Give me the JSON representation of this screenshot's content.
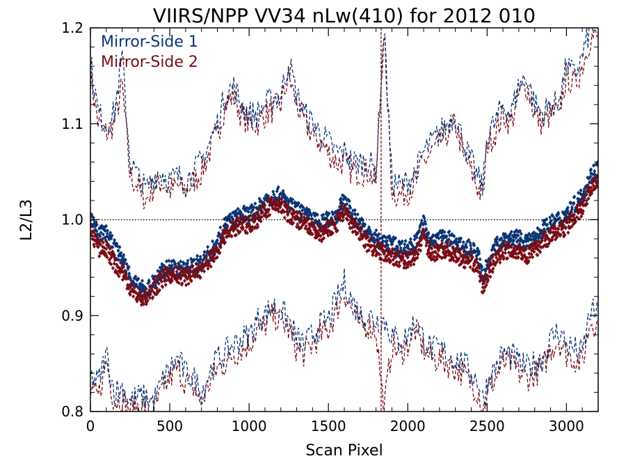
{
  "chart_data": {
    "type": "scatter",
    "title": "VIIRS/NPP VV34 nLw(410) for 2012 010",
    "xlabel": "Scan Pixel",
    "ylabel": "L2/L3",
    "xlim": [
      0,
      3200
    ],
    "ylim": [
      0.8,
      1.2
    ],
    "xticks": [
      0,
      500,
      1000,
      1500,
      2000,
      2500,
      3000
    ],
    "xtick_labels": [
      "0",
      "500",
      "1000",
      "1500",
      "2000",
      "2500",
      "3000"
    ],
    "yticks": [
      0.8,
      0.9,
      1.0,
      1.1,
      1.2
    ],
    "ytick_labels": [
      "0.8",
      "0.9",
      "1.0",
      "1.1",
      "1.2"
    ],
    "reference_line": 1.0,
    "legend": {
      "placement": "top-left"
    },
    "series": [
      {
        "name": "Mirror-Side 1",
        "color": "#0a3575",
        "marker": "diamond",
        "line_style": "dashed",
        "x": [
          0,
          50,
          100,
          150,
          200,
          250,
          300,
          350,
          400,
          450,
          500,
          550,
          600,
          650,
          700,
          750,
          800,
          850,
          900,
          950,
          1000,
          1050,
          1100,
          1150,
          1200,
          1250,
          1300,
          1350,
          1400,
          1450,
          1500,
          1550,
          1600,
          1650,
          1700,
          1750,
          1800,
          1850,
          1900,
          1950,
          2000,
          2050,
          2100,
          2150,
          2200,
          2250,
          2300,
          2350,
          2400,
          2450,
          2475,
          2500,
          2550,
          2600,
          2650,
          2700,
          2750,
          2800,
          2850,
          2900,
          2950,
          3000,
          3050,
          3100,
          3150,
          3200
        ],
        "mean": [
          1.005,
          0.985,
          0.985,
          0.97,
          0.96,
          0.94,
          0.93,
          0.925,
          0.935,
          0.945,
          0.95,
          0.948,
          0.948,
          0.952,
          0.955,
          0.965,
          0.975,
          0.995,
          1.0,
          1.005,
          1.005,
          1.01,
          1.02,
          1.025,
          1.025,
          1.015,
          1.01,
          1.005,
          1.0,
          0.995,
          1.0,
          1.005,
          1.02,
          1.005,
          0.995,
          0.985,
          0.98,
          0.975,
          0.975,
          0.97,
          0.97,
          0.975,
          0.995,
          0.975,
          0.98,
          0.98,
          0.975,
          0.97,
          0.97,
          0.96,
          0.935,
          0.955,
          0.97,
          0.98,
          0.98,
          0.98,
          0.975,
          0.98,
          0.99,
          0.995,
          1.0,
          1.005,
          1.015,
          1.025,
          1.045,
          1.055
        ],
        "upper": [
          1.165,
          1.11,
          1.1,
          1.11,
          1.17,
          1.06,
          1.045,
          1.03,
          1.045,
          1.05,
          1.04,
          1.045,
          1.04,
          1.05,
          1.06,
          1.08,
          1.1,
          1.13,
          1.14,
          1.12,
          1.11,
          1.11,
          1.12,
          1.125,
          1.13,
          1.165,
          1.13,
          1.11,
          1.1,
          1.09,
          1.08,
          1.07,
          1.07,
          1.06,
          1.06,
          1.06,
          1.05,
          1.2,
          1.04,
          1.035,
          1.04,
          1.05,
          1.07,
          1.08,
          1.09,
          1.1,
          1.11,
          1.08,
          1.06,
          1.04,
          1.035,
          1.09,
          1.1,
          1.12,
          1.11,
          1.14,
          1.15,
          1.12,
          1.11,
          1.12,
          1.12,
          1.16,
          1.15,
          1.17,
          1.2,
          1.2
        ],
        "lower": [
          0.835,
          0.83,
          0.86,
          0.82,
          0.825,
          0.81,
          0.815,
          0.815,
          0.81,
          0.83,
          0.845,
          0.855,
          0.84,
          0.835,
          0.82,
          0.84,
          0.855,
          0.86,
          0.87,
          0.875,
          0.88,
          0.895,
          0.9,
          0.91,
          0.905,
          0.895,
          0.875,
          0.87,
          0.88,
          0.89,
          0.895,
          0.915,
          0.935,
          0.915,
          0.9,
          0.9,
          0.895,
          0.895,
          0.88,
          0.87,
          0.88,
          0.895,
          0.875,
          0.865,
          0.865,
          0.86,
          0.855,
          0.85,
          0.84,
          0.83,
          0.81,
          0.83,
          0.845,
          0.86,
          0.86,
          0.85,
          0.845,
          0.85,
          0.855,
          0.875,
          0.885,
          0.87,
          0.865,
          0.86,
          0.905,
          0.9
        ]
      },
      {
        "name": "Mirror-Side 2",
        "color": "#7a0c16",
        "marker": "diamond",
        "line_style": "dashed",
        "x": [
          0,
          50,
          100,
          150,
          200,
          250,
          300,
          350,
          400,
          450,
          500,
          550,
          600,
          650,
          700,
          750,
          800,
          850,
          900,
          950,
          1000,
          1050,
          1100,
          1150,
          1200,
          1250,
          1300,
          1350,
          1400,
          1450,
          1500,
          1550,
          1600,
          1650,
          1700,
          1750,
          1800,
          1850,
          1900,
          1950,
          2000,
          2050,
          2100,
          2150,
          2200,
          2250,
          2300,
          2350,
          2400,
          2450,
          2475,
          2500,
          2550,
          2600,
          2650,
          2700,
          2750,
          2800,
          2850,
          2900,
          2950,
          3000,
          3050,
          3100,
          3150,
          3200
        ],
        "mean": [
          0.99,
          0.97,
          0.97,
          0.955,
          0.945,
          0.93,
          0.92,
          0.918,
          0.928,
          0.938,
          0.943,
          0.942,
          0.94,
          0.945,
          0.948,
          0.958,
          0.968,
          0.985,
          0.99,
          0.995,
          0.995,
          1.0,
          1.01,
          1.015,
          1.015,
          1.005,
          1.0,
          0.995,
          0.99,
          0.985,
          0.99,
          0.995,
          1.01,
          0.995,
          0.985,
          0.975,
          0.97,
          0.965,
          0.962,
          0.958,
          0.958,
          0.963,
          0.983,
          0.963,
          0.968,
          0.968,
          0.963,
          0.958,
          0.958,
          0.948,
          0.925,
          0.943,
          0.958,
          0.968,
          0.968,
          0.968,
          0.963,
          0.968,
          0.978,
          0.983,
          0.988,
          0.993,
          1.003,
          1.013,
          1.033,
          1.043
        ],
        "upper": [
          1.15,
          1.1,
          1.09,
          1.1,
          1.14,
          1.045,
          1.035,
          1.02,
          1.035,
          1.04,
          1.03,
          1.035,
          1.03,
          1.04,
          1.05,
          1.07,
          1.09,
          1.12,
          1.13,
          1.11,
          1.1,
          1.1,
          1.11,
          1.115,
          1.12,
          1.15,
          1.12,
          1.1,
          1.09,
          1.08,
          1.07,
          1.06,
          1.06,
          1.05,
          1.05,
          1.05,
          1.04,
          1.2,
          1.03,
          1.025,
          1.03,
          1.04,
          1.06,
          1.07,
          1.08,
          1.09,
          1.1,
          1.07,
          1.05,
          1.03,
          1.025,
          1.08,
          1.09,
          1.11,
          1.1,
          1.13,
          1.14,
          1.11,
          1.1,
          1.11,
          1.11,
          1.15,
          1.14,
          1.16,
          1.19,
          1.19
        ],
        "lower": [
          0.82,
          0.815,
          0.855,
          0.81,
          0.815,
          0.8,
          0.805,
          0.805,
          0.8,
          0.82,
          0.835,
          0.845,
          0.83,
          0.825,
          0.81,
          0.83,
          0.845,
          0.85,
          0.86,
          0.865,
          0.87,
          0.885,
          0.89,
          0.9,
          0.895,
          0.885,
          0.865,
          0.86,
          0.87,
          0.88,
          0.885,
          0.905,
          0.925,
          0.905,
          0.89,
          0.89,
          0.885,
          0.8,
          0.87,
          0.86,
          0.87,
          0.885,
          0.865,
          0.855,
          0.855,
          0.85,
          0.845,
          0.84,
          0.83,
          0.82,
          0.8,
          0.82,
          0.835,
          0.85,
          0.85,
          0.84,
          0.835,
          0.84,
          0.845,
          0.865,
          0.875,
          0.86,
          0.855,
          0.85,
          0.895,
          0.89
        ]
      }
    ]
  }
}
